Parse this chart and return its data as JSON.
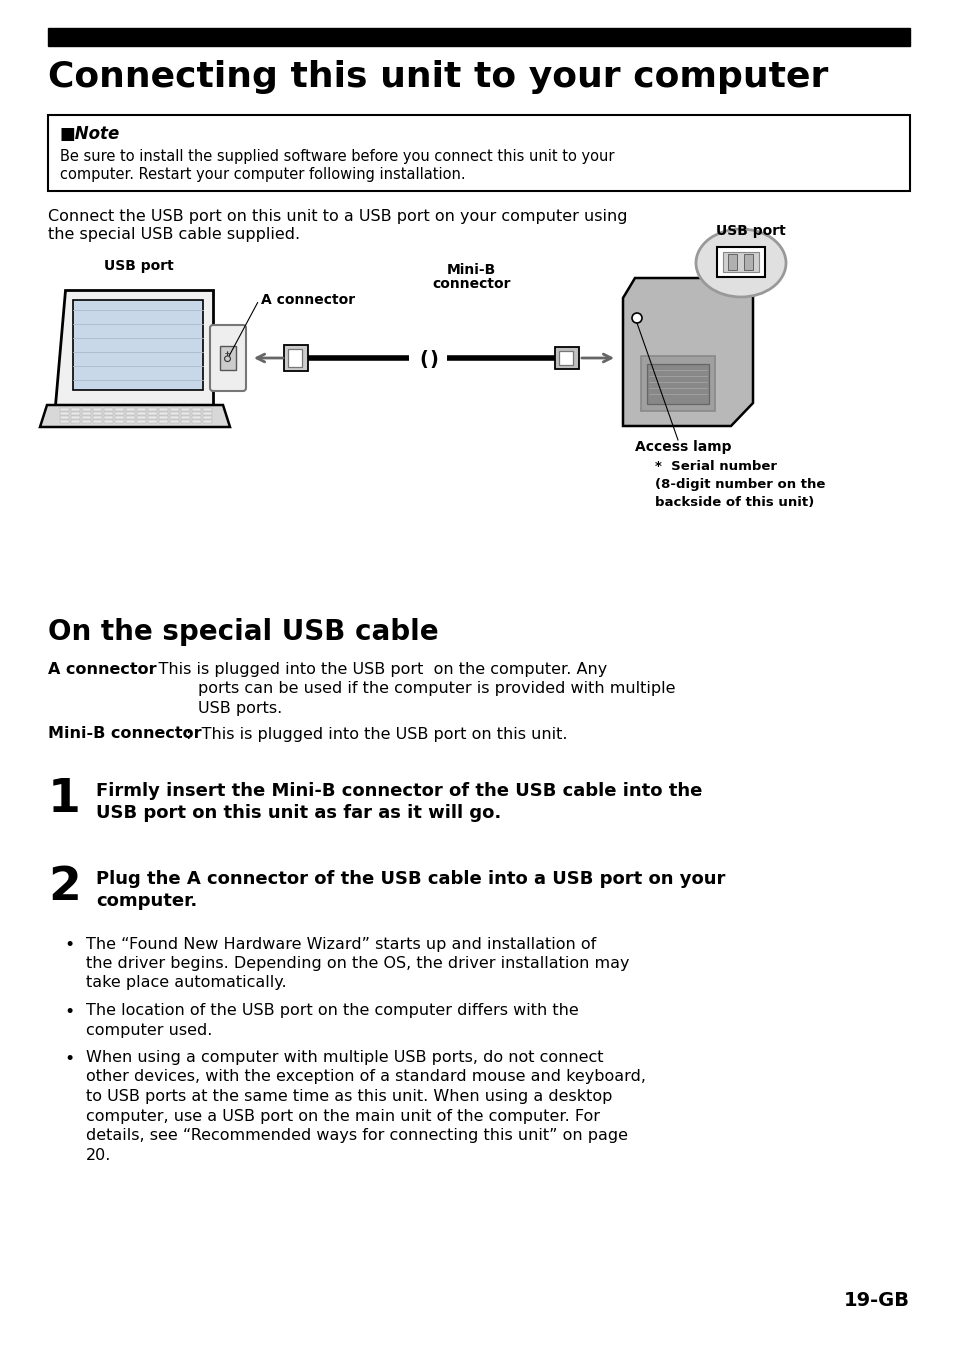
{
  "bg_color": "#ffffff",
  "title_text": "Connecting this unit to your computer",
  "note_bold": "■Note",
  "note_body1": "Be sure to install the supplied software before you connect this unit to your",
  "note_body2": "computer. Restart your computer following installation.",
  "intro1": "Connect the USB port on this unit to a USB port on your computer using",
  "intro2": "the special USB cable supplied.",
  "lbl_usb_left": "USB port",
  "lbl_a_conn": "A connector",
  "lbl_mini_b_line1": "Mini-B",
  "lbl_mini_b_line2": "connector",
  "lbl_usb_right": "USB port",
  "lbl_access": "Access lamp",
  "lbl_serial1": "*  Serial number",
  "lbl_serial2": "(8-digit number on the",
  "lbl_serial3": "backside of this unit)",
  "section_title": "On the special USB cable",
  "a_conn_bold": "A connector",
  "a_conn_text1": ": This is plugged into the USB port  on the computer. Any",
  "a_conn_text2": "ports can be used if the computer is provided with multiple",
  "a_conn_text3": "USB ports.",
  "minib_bold": "Mini-B connector",
  "minib_text": ":  This is plugged into the USB port on this unit.",
  "s1_num": "1",
  "s1_line1": "Firmly insert the Mini-B connector of the USB cable into the",
  "s1_line2": "USB port on this unit as far as it will go.",
  "s2_num": "2",
  "s2_line1": "Plug the A connector of the USB cable into a USB port on your",
  "s2_line2": "computer.",
  "b1_l1": "The “Found New Hardware Wizard” starts up and installation of",
  "b1_l2": "the driver begins. Depending on the OS, the driver installation may",
  "b1_l3": "take place automatically.",
  "b2_l1": "The location of the USB port on the computer differs with the",
  "b2_l2": "computer used.",
  "b3_l1": "When using a computer with multiple USB ports, do not connect",
  "b3_l2": "other devices, with the exception of a standard mouse and keyboard,",
  "b3_l3": "to USB ports at the same time as this unit. When using a desktop",
  "b3_l4": "computer, use a USB port on the main unit of the computer. For",
  "b3_l5": "details, see “Recommended ways for connecting this unit” on page",
  "b3_l6": "20.",
  "page_num": "19-GB"
}
